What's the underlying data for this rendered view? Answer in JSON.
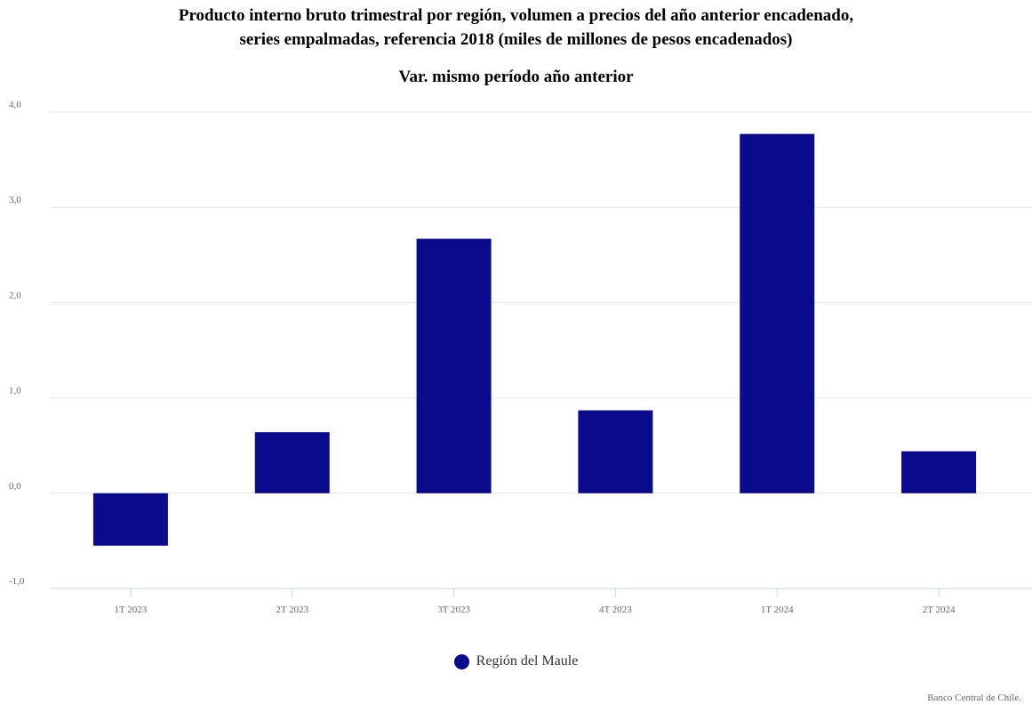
{
  "chart_data": {
    "type": "bar",
    "title_lines": [
      "Producto interno bruto trimestral por región, volumen a precios del año anterior encadenado,",
      "series empalmadas, referencia 2018 (miles de millones de pesos encadenados)"
    ],
    "subtitle": "Var. mismo período año anterior",
    "categories": [
      "1T 2023",
      "2T 2023",
      "3T 2023",
      "4T 2023",
      "1T 2024",
      "2T 2024"
    ],
    "series": [
      {
        "name": "Región del Maule",
        "values": [
          -0.55,
          0.64,
          2.67,
          0.87,
          3.77,
          0.44
        ],
        "color": "#0a0a8c"
      }
    ],
    "ylim": [
      -1.0,
      4.0
    ],
    "yticks": [
      -1.0,
      0.0,
      1.0,
      2.0,
      3.0,
      4.0
    ],
    "ytick_labels": [
      "-1,0",
      "0,0",
      "1,0",
      "2,0",
      "3,0",
      "4,0"
    ],
    "xlabel": "",
    "ylabel": "",
    "grid": true,
    "legend_position": "bottom-center"
  },
  "credits": "Banco Central de Chile."
}
